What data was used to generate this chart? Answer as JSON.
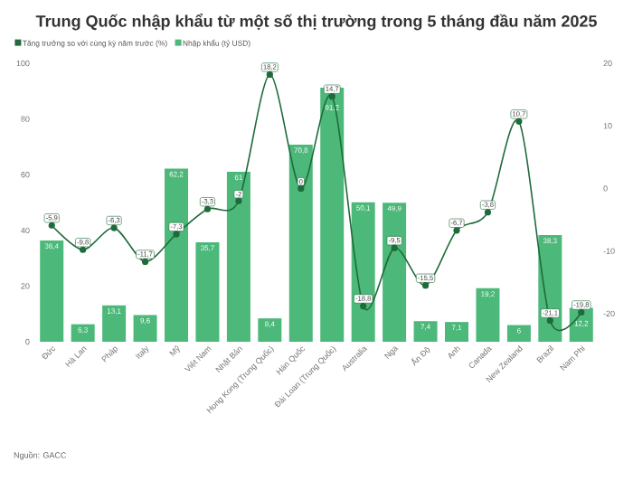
{
  "chart_data": {
    "type": "bar",
    "title": "Trung Quốc nhập khẩu từ một số thị trường trong 5 tháng đầu năm 2025",
    "categories": [
      "Đức",
      "Hà Lan",
      "Pháp",
      "Italy",
      "Mỹ",
      "Việt Nam",
      "Nhật Bản",
      "Hong Kong (Trung Quốc)",
      "Hàn Quốc",
      "Đài Loan (Trung Quốc)",
      "Australia",
      "Nga",
      "Ấn Độ",
      "Anh",
      "Canada",
      "New Zealand",
      "Brazil",
      "Nam Phi"
    ],
    "series": [
      {
        "name": "Nhập khẩu (tỷ USD)",
        "color": "#4cb87a",
        "values": [
          36.4,
          6.3,
          13.1,
          9.6,
          62.2,
          35.7,
          61,
          8.4,
          70.8,
          91.2,
          50.1,
          49.9,
          7.4,
          7.1,
          19.2,
          6,
          38.3,
          12.2
        ],
        "value_labels": [
          "36,4",
          "6,3",
          "13,1",
          "9,6",
          "62,2",
          "35,7",
          "61",
          "8,4",
          "70,8",
          "91,2",
          "50,1",
          "49,9",
          "7,4",
          "7,1",
          "19,2",
          "6",
          "38,3",
          "12,2"
        ]
      },
      {
        "name": "Tăng trưởng so với cùng kỳ năm trước (%)",
        "type": "line",
        "axis": "y2",
        "color": "#1f6b3a",
        "marker": "circle",
        "values": [
          -5.9,
          -9.8,
          -6.3,
          -11.7,
          -7.3,
          -3.3,
          -2,
          18.2,
          0,
          14.7,
          -18.8,
          -9.5,
          -15.5,
          -6.7,
          -3.8,
          10.7,
          -21.1,
          -19.8
        ],
        "value_labels": [
          "-5,9",
          "-9,8",
          "-6,3",
          "-11,7",
          "-7,3",
          "-3,3",
          "-2",
          "18,2",
          "0",
          "14,7",
          "-18,8",
          "-9,5",
          "-15,5",
          "-6,7",
          "-3,8",
          "10,7",
          "-21,1",
          "-19,8"
        ]
      }
    ],
    "ylim": [
      0,
      100
    ],
    "yticks": [
      0,
      20,
      40,
      60,
      80,
      100
    ],
    "y2lim": [
      -24.5,
      20
    ],
    "y2ticks": [
      -20,
      -10,
      0,
      10,
      20
    ],
    "legend": "top left",
    "annotations": [
      "Nguồn: GACC"
    ]
  }
}
